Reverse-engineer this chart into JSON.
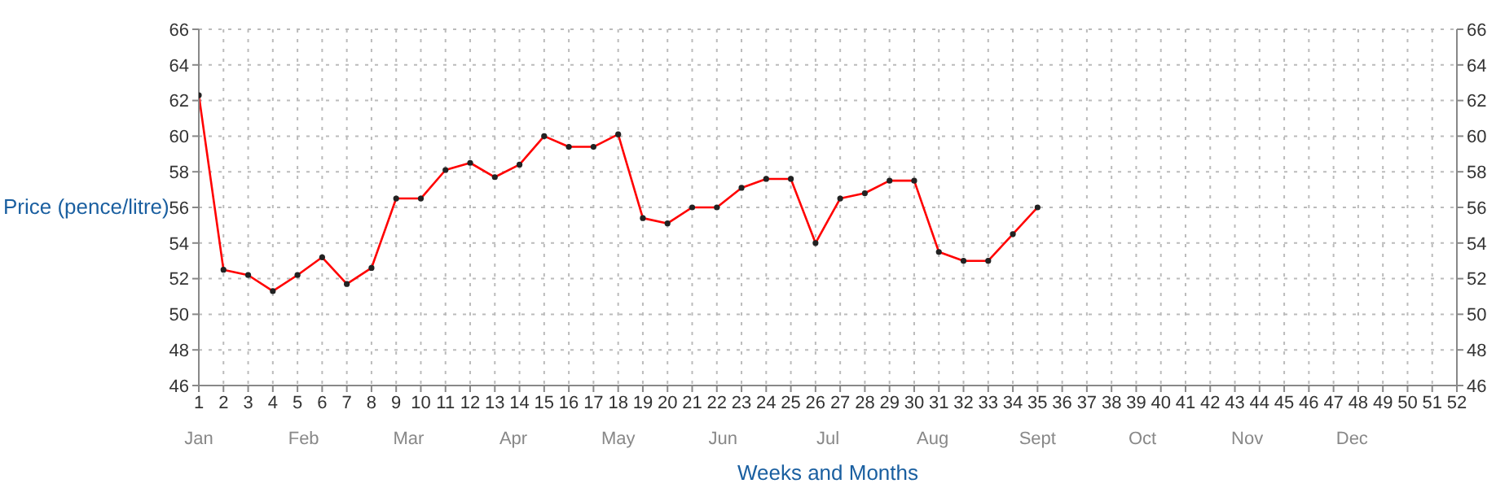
{
  "chart_data": {
    "type": "line",
    "xlabel": "Weeks and Months",
    "ylabel": "Price (pence/litre)",
    "x": [
      1,
      2,
      3,
      4,
      5,
      6,
      7,
      8,
      9,
      10,
      11,
      12,
      13,
      14,
      15,
      16,
      17,
      18,
      19,
      20,
      21,
      22,
      23,
      24,
      25,
      26,
      27,
      28,
      29,
      30,
      31,
      32,
      33,
      34,
      35
    ],
    "series": [
      {
        "color": "#ff0000",
        "values": [
          62.3,
          52.5,
          52.2,
          51.3,
          52.2,
          53.2,
          51.7,
          52.6,
          56.5,
          56.5,
          58.1,
          58.5,
          57.7,
          58.4,
          60.0,
          59.4,
          59.4,
          60.1,
          55.4,
          55.1,
          56.0,
          56.0,
          57.1,
          57.6,
          57.6,
          54.0,
          56.5,
          56.8,
          57.5,
          57.5,
          53.5,
          53.0,
          53.0,
          54.5,
          56.0
        ]
      }
    ],
    "xlim": [
      1,
      52
    ],
    "xticks": [
      1,
      2,
      3,
      4,
      5,
      6,
      7,
      8,
      9,
      10,
      11,
      12,
      13,
      14,
      15,
      16,
      17,
      18,
      19,
      20,
      21,
      22,
      23,
      24,
      25,
      26,
      27,
      28,
      29,
      30,
      31,
      32,
      33,
      34,
      35,
      36,
      37,
      38,
      39,
      40,
      41,
      42,
      43,
      44,
      45,
      46,
      47,
      48,
      49,
      50,
      51,
      52
    ],
    "annotations": [
      "Jan",
      "Feb",
      "Mar",
      "Apr",
      "May",
      "Jun",
      "Jul",
      "Aug",
      "Sept",
      "Oct",
      "Nov",
      "Dec"
    ],
    "ylim": [
      46,
      66
    ],
    "yticks": [
      46,
      48,
      50,
      52,
      54,
      56,
      58,
      60,
      62,
      64,
      66
    ],
    "y2lim": [
      46,
      66
    ],
    "y2ticks": [
      46,
      48,
      50,
      52,
      54,
      56,
      58,
      60,
      62,
      64,
      66
    ],
    "grid": true,
    "marker": "circle",
    "line_style": "solid"
  }
}
